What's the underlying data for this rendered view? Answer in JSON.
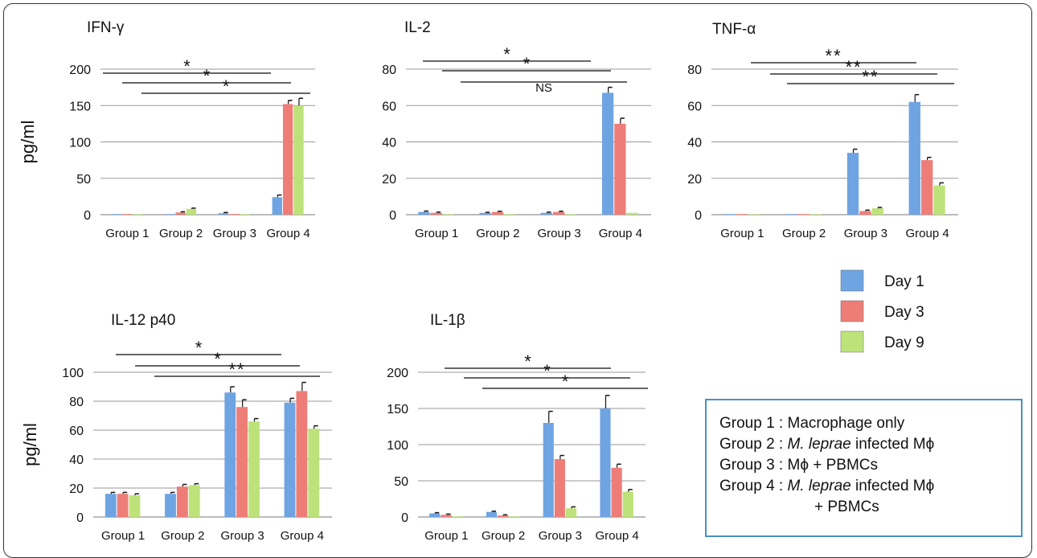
{
  "colors": {
    "day1": "#6fa4e3",
    "day3": "#ee7d78",
    "day9": "#bde27a",
    "grid": "#9a9a9a",
    "box_border": "#4a90c2"
  },
  "legend": [
    "Day 1",
    "Day 3",
    "Day 9"
  ],
  "group_description": [
    {
      "prefix": "Group 1 : Macrophage only",
      "italic": "",
      "suffix": ""
    },
    {
      "prefix": "Group 2 : ",
      "italic": "M. leprae",
      "suffix": " infected Mϕ"
    },
    {
      "prefix": "Group 3 : Mϕ + PBMCs",
      "italic": "",
      "suffix": ""
    },
    {
      "prefix": "Group 4 : ",
      "italic": "M. leprae",
      "suffix": " infected Mϕ"
    },
    {
      "prefix": "+ PBMCs",
      "italic": "",
      "suffix": "",
      "indent": true
    }
  ],
  "chart_data": [
    {
      "type": "bar",
      "title": "IFN-γ",
      "ylabel": "pg/ml",
      "ylim": [
        0,
        200
      ],
      "yticks": [
        0,
        50,
        100,
        150,
        200
      ],
      "categories": [
        "Group 1",
        "Group 2",
        "Group 3",
        "Group 4"
      ],
      "series": [
        {
          "name": "Day 1",
          "values": [
            0,
            0,
            2,
            24
          ],
          "errors": [
            0,
            0,
            1,
            3
          ]
        },
        {
          "name": "Day 3",
          "values": [
            0,
            3,
            1,
            152
          ],
          "errors": [
            0,
            1,
            0,
            5
          ]
        },
        {
          "name": "Day 9",
          "values": [
            0,
            8,
            0,
            150
          ],
          "errors": [
            0,
            1,
            0,
            10
          ]
        }
      ],
      "significance": [
        {
          "label": "*",
          "from": 1,
          "to": 4
        },
        {
          "label": "*",
          "from": 2,
          "to": 4
        },
        {
          "label": "*",
          "from": 3,
          "to": 4
        }
      ],
      "grid": true
    },
    {
      "type": "bar",
      "title": "IL-2",
      "ylabel": "",
      "ylim": [
        0,
        80
      ],
      "yticks": [
        0,
        20,
        40,
        60,
        80
      ],
      "categories": [
        "Group 1",
        "Group 2",
        "Group 3",
        "Group 4"
      ],
      "series": [
        {
          "name": "Day 1",
          "values": [
            1.5,
            1,
            1,
            67
          ],
          "errors": [
            0.5,
            0.3,
            0.4,
            3
          ]
        },
        {
          "name": "Day 3",
          "values": [
            1,
            1.5,
            1.5,
            50
          ],
          "errors": [
            0.4,
            0.4,
            0.4,
            3
          ]
        },
        {
          "name": "Day 9",
          "values": [
            0,
            0,
            0,
            1
          ],
          "errors": [
            0,
            0,
            0,
            0
          ]
        }
      ],
      "significance": [
        {
          "label": "*",
          "from": 1,
          "to": 4
        },
        {
          "label": "*",
          "from": 2,
          "to": 4
        },
        {
          "label": "NS",
          "from": 3,
          "to": 4
        }
      ],
      "grid": true
    },
    {
      "type": "bar",
      "title": "TNF-α",
      "ylabel": "",
      "ylim": [
        0,
        80
      ],
      "yticks": [
        0,
        20,
        40,
        60,
        80
      ],
      "categories": [
        "Group 1",
        "Group 2",
        "Group 3",
        "Group 4"
      ],
      "series": [
        {
          "name": "Day 1",
          "values": [
            0,
            0,
            34,
            62
          ],
          "errors": [
            0,
            0,
            2,
            4
          ]
        },
        {
          "name": "Day 3",
          "values": [
            0,
            0,
            2,
            30
          ],
          "errors": [
            0,
            0,
            0.5,
            1.5
          ]
        },
        {
          "name": "Day 9",
          "values": [
            0,
            0,
            3.5,
            16
          ],
          "errors": [
            0,
            0,
            0.5,
            1.5
          ]
        }
      ],
      "significance": [
        {
          "label": "**",
          "from": 1,
          "to": 4
        },
        {
          "label": "**",
          "from": 2,
          "to": 4
        },
        {
          "label": "**",
          "from": 3,
          "to": 4
        }
      ],
      "grid": true
    },
    {
      "type": "bar",
      "title": "IL-12 p40",
      "ylabel": "pg/ml",
      "ylim": [
        0,
        100
      ],
      "yticks": [
        0,
        20,
        40,
        60,
        80,
        100
      ],
      "categories": [
        "Group 1",
        "Group 2",
        "Group 3",
        "Group 4"
      ],
      "series": [
        {
          "name": "Day 1",
          "values": [
            16,
            16,
            86,
            79
          ],
          "errors": [
            1,
            1,
            4,
            3
          ]
        },
        {
          "name": "Day 3",
          "values": [
            16,
            21,
            76,
            87
          ],
          "errors": [
            1,
            1.5,
            5,
            6
          ]
        },
        {
          "name": "Day 9",
          "values": [
            15,
            22,
            66,
            61
          ],
          "errors": [
            1,
            1,
            2,
            2
          ]
        }
      ],
      "significance": [
        {
          "label": "*",
          "from": 1,
          "to": 3
        },
        {
          "label": "*",
          "from": 2,
          "to": 4
        },
        {
          "label": "**",
          "from": 3,
          "to": 4
        }
      ],
      "grid": true
    },
    {
      "type": "bar",
      "title": "IL-1β",
      "ylabel": "",
      "ylim": [
        0,
        200
      ],
      "yticks": [
        0,
        50,
        100,
        150,
        200
      ],
      "categories": [
        "Group 1",
        "Group 2",
        "Group 3",
        "Group 4"
      ],
      "series": [
        {
          "name": "Day 1",
          "values": [
            5,
            7,
            130,
            150
          ],
          "errors": [
            1,
            1,
            16,
            18
          ]
        },
        {
          "name": "Day 3",
          "values": [
            3,
            2,
            80,
            68
          ],
          "errors": [
            1,
            1,
            5,
            5
          ]
        },
        {
          "name": "Day 9",
          "values": [
            0,
            0,
            12,
            35
          ],
          "errors": [
            0,
            0,
            2,
            3
          ]
        }
      ],
      "significance": [
        {
          "label": "*",
          "from": 1,
          "to": 4
        },
        {
          "label": "*",
          "from": 2,
          "to": 4
        },
        {
          "label": "*",
          "from": 3,
          "to": 4
        }
      ],
      "grid": true
    }
  ]
}
